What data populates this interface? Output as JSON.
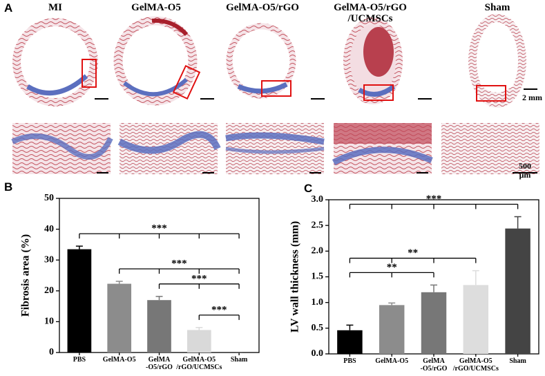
{
  "panel_a": {
    "label": "A",
    "columns": [
      "MI",
      "GelMA-O5",
      "GelMA-O5/rGO",
      "GelMA-O5/rGO\n/UCMSCs",
      "Sham"
    ],
    "scale_bar_labels": [
      "2 mm",
      "500 μm"
    ]
  },
  "chart_data": [
    {
      "panel_label": "B",
      "type": "bar",
      "ylabel": "Fibrosis area (%)",
      "categories": [
        "PBS",
        "GelMA-O5",
        "GelMA\n-O5/rGO",
        "GelMA-O5\n/rGO/UCMSCs",
        "Sham"
      ],
      "values": [
        33.5,
        22.3,
        17,
        7.3,
        0
      ],
      "errors": [
        1,
        0.8,
        1.2,
        0.8,
        0
      ],
      "colors": [
        "#000000",
        "#8c8c8c",
        "#777777",
        "#d9d9d9",
        "#444444"
      ],
      "ylim": [
        0,
        50
      ],
      "yticks": [
        0,
        10,
        20,
        30,
        40,
        50
      ],
      "brackets": [
        {
          "label": "***",
          "from": 0,
          "to": 4
        },
        {
          "label": "***",
          "from": 1,
          "to": 4
        },
        {
          "label": "***",
          "from": 2,
          "to": 4
        },
        {
          "label": "***",
          "from": 3,
          "to": 4
        }
      ]
    },
    {
      "panel_label": "C",
      "type": "bar",
      "ylabel": "LV wall thickness (mm)",
      "categories": [
        "PBS",
        "GelMA-O5",
        "GelMA\n-O5/rGO",
        "GelMA-O5\n/rGO/UCMSCs",
        "Sham"
      ],
      "values": [
        0.46,
        0.95,
        1.2,
        1.34,
        2.44
      ],
      "errors": [
        0.1,
        0.04,
        0.14,
        0.28,
        0.23
      ],
      "colors": [
        "#000000",
        "#8c8c8c",
        "#777777",
        "#dddddd",
        "#444444"
      ],
      "ylim": [
        0,
        3
      ],
      "yticks": [
        {
          "value": 0,
          "label": "0.0"
        },
        {
          "value": 0.5,
          "label": "0.5"
        },
        {
          "value": 1,
          "label": "1.0"
        },
        {
          "value": 1.5,
          "label": "1.5"
        },
        {
          "value": 2,
          "label": "2.0"
        },
        {
          "value": 2.5,
          "label": "2.5"
        },
        {
          "value": 3,
          "label": "3.0"
        }
      ],
      "brackets": [
        {
          "label": "***",
          "from": 0,
          "to": 4
        },
        {
          "label": "**",
          "from": 0,
          "to": 3
        },
        {
          "label": "**",
          "from": 0,
          "to": 2
        }
      ]
    }
  ]
}
